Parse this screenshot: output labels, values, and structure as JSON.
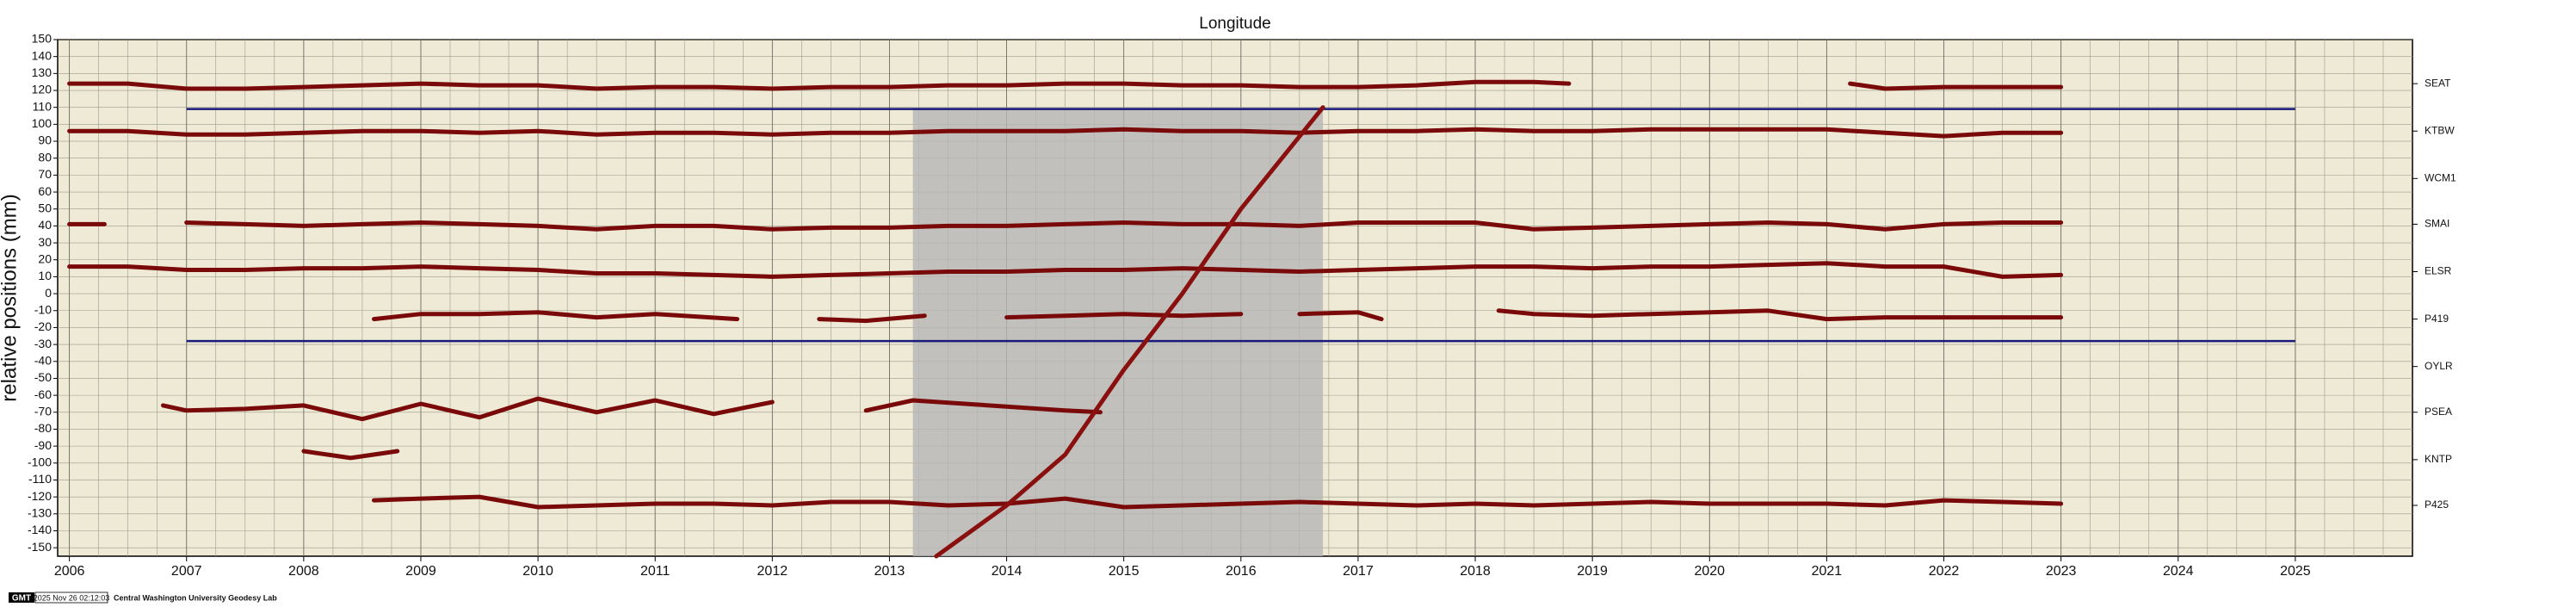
{
  "chart_data": {
    "type": "line",
    "title": "Longitude",
    "y_label": "relative positions (mm)",
    "xlim": [
      2005.9,
      2026.0
    ],
    "xticks": [
      2006,
      2007,
      2008,
      2009,
      2010,
      2011,
      2012,
      2013,
      2014,
      2015,
      2016,
      2017,
      2018,
      2019,
      2020,
      2021,
      2022,
      2023,
      2024,
      2025
    ],
    "x_minor_divisions": 4,
    "ylim": [
      -155,
      150
    ],
    "yticks": [
      -150,
      -140,
      -130,
      -120,
      -110,
      -100,
      -90,
      -80,
      -70,
      -60,
      -50,
      -40,
      -30,
      -20,
      -10,
      0,
      10,
      20,
      30,
      40,
      50,
      60,
      70,
      80,
      90,
      100,
      110,
      120,
      130,
      140,
      150
    ],
    "grid": true,
    "y2lim": [
      -155,
      150
    ],
    "y2ticks": [
      {
        "value": 124,
        "label": "SEAT"
      },
      {
        "value": 96,
        "label": "KTBW"
      },
      {
        "value": 68,
        "label": "WCM1"
      },
      {
        "value": 41,
        "label": "SMAI"
      },
      {
        "value": 13,
        "label": "ELSR"
      },
      {
        "value": -15,
        "label": "P419"
      },
      {
        "value": -43,
        "label": "OYLR"
      },
      {
        "value": -70,
        "label": "PSEA"
      },
      {
        "value": -98,
        "label": "KNTP"
      },
      {
        "value": -125,
        "label": "P425"
      }
    ],
    "shaded_span": {
      "x": [
        2013.2,
        2016.7
      ],
      "y": [
        -155,
        110
      ],
      "color": "#b5b5b5"
    },
    "reference_lines": [
      {
        "y": 109,
        "x": [
          2007,
          2025
        ],
        "color": "#1a1a7a"
      },
      {
        "y": -28,
        "x": [
          2007,
          2025
        ],
        "color": "#1a1a7a"
      }
    ],
    "series": [
      {
        "color": "#7a0a0a",
        "x": [
          2006,
          2006.5,
          2007,
          2007.5,
          2008,
          2008.5,
          2009,
          2009.5,
          2010,
          2010.5,
          2011,
          2011.5,
          2012,
          2012.5,
          2013,
          2013.5,
          2014,
          2014.5,
          2015,
          2015.5,
          2016,
          2016.5,
          2017,
          2017.5,
          2018,
          2018.5,
          2018.8,
          2020,
          2021.2,
          2021.5,
          2022,
          2022.5,
          2023
        ],
        "values": [
          124,
          124,
          121,
          121,
          122,
          123,
          124,
          123,
          123,
          121,
          122,
          122,
          121,
          122,
          122,
          123,
          123,
          124,
          124,
          123,
          123,
          122,
          122,
          123,
          125,
          125,
          124,
          null,
          124,
          121,
          122,
          122,
          122
        ]
      },
      {
        "color": "#7a0a0a",
        "x": [
          2006,
          2006.5,
          2007,
          2007.5,
          2008,
          2008.5,
          2009,
          2009.5,
          2010,
          2010.5,
          2011,
          2011.5,
          2012,
          2012.5,
          2013,
          2013.5,
          2014,
          2014.5,
          2015,
          2015.5,
          2016,
          2016.5,
          2017,
          2017.5,
          2018,
          2018.5,
          2019,
          2019.5,
          2020,
          2020.5,
          2021,
          2021.5,
          2022,
          2022.5,
          2023
        ],
        "values": [
          96,
          96,
          94,
          94,
          95,
          96,
          96,
          95,
          96,
          94,
          95,
          95,
          94,
          95,
          95,
          96,
          96,
          96,
          97,
          96,
          96,
          95,
          96,
          96,
          97,
          96,
          96,
          97,
          97,
          97,
          97,
          95,
          93,
          95,
          95
        ]
      },
      {
        "color": "#7a0a0a",
        "x": [
          2006,
          2006.3,
          2006.6,
          2007,
          2007.5,
          2008,
          2008.5,
          2009,
          2009.5,
          2010,
          2010.5,
          2011,
          2011.5,
          2012,
          2012.5,
          2013,
          2013.5,
          2014,
          2014.5,
          2015,
          2015.5,
          2016,
          2016.5,
          2017,
          2017.5,
          2018,
          2018.5,
          2019,
          2019.5,
          2020,
          2020.5,
          2021,
          2021.5,
          2022,
          2022.5,
          2023
        ],
        "values": [
          41,
          41,
          null,
          42,
          41,
          40,
          41,
          42,
          41,
          40,
          38,
          40,
          40,
          38,
          39,
          39,
          40,
          40,
          41,
          42,
          41,
          41,
          40,
          42,
          42,
          42,
          38,
          39,
          40,
          41,
          42,
          41,
          38,
          41,
          42,
          42
        ]
      },
      {
        "color": "#7a0a0a",
        "x": [
          2006,
          2006.5,
          2007,
          2007.5,
          2008,
          2008.5,
          2009,
          2009.5,
          2010,
          2010.5,
          2011,
          2011.5,
          2012,
          2012.5,
          2013,
          2013.5,
          2014,
          2014.5,
          2015,
          2015.5,
          2016,
          2016.5,
          2017,
          2017.5,
          2018,
          2018.5,
          2019,
          2019.5,
          2020,
          2020.5,
          2021,
          2021.5,
          2022,
          2022.5,
          2023
        ],
        "values": [
          16,
          16,
          14,
          14,
          15,
          15,
          16,
          15,
          14,
          12,
          12,
          11,
          10,
          11,
          12,
          13,
          13,
          14,
          14,
          15,
          14,
          13,
          14,
          15,
          16,
          16,
          15,
          16,
          16,
          17,
          18,
          16,
          16,
          10,
          11
        ]
      },
      {
        "color": "#7a0a0a",
        "x": [
          2008.6,
          2009,
          2009.5,
          2010,
          2010.5,
          2011,
          2011.7,
          2012,
          2012.4,
          2012.8,
          2013.3,
          2013.7,
          2014,
          2014.5,
          2015,
          2015.5,
          2016,
          2016.3,
          2016.5,
          2017,
          2017.2,
          2017.8,
          2018.2,
          2018.5,
          2019,
          2019.5,
          2020,
          2020.5,
          2021,
          2021.5,
          2022,
          2022.5,
          2023
        ],
        "values": [
          -15,
          -12,
          -12,
          -11,
          -14,
          -12,
          -15,
          null,
          -15,
          -16,
          -13,
          null,
          -14,
          -13,
          -12,
          -13,
          -12,
          null,
          -12,
          -11,
          -15,
          null,
          -10,
          -12,
          -13,
          -12,
          -11,
          -10,
          -15,
          -14,
          -14,
          -14,
          -14
        ]
      },
      {
        "color": "#7a0a0a",
        "x": [
          2006.8,
          2007,
          2007.5,
          2008,
          2008.5,
          2009,
          2009.5,
          2010,
          2010.5,
          2011,
          2011.5,
          2012,
          2012.3,
          2012.8,
          2013.2,
          2014.5,
          2014.8
        ],
        "values": [
          -66,
          -69,
          -68,
          -66,
          -74,
          -65,
          -73,
          -62,
          -70,
          -63,
          -71,
          -64,
          null,
          -69,
          -63,
          -69,
          -70
        ]
      },
      {
        "color": "#7a0a0a",
        "x": [
          2008,
          2008.4,
          2008.8
        ],
        "values": [
          -93,
          -97,
          -93
        ]
      },
      {
        "color": "#7a0a0a",
        "x": [
          2008.6,
          2009,
          2009.5,
          2010,
          2010.5,
          2011,
          2011.5,
          2012,
          2012.5,
          2013,
          2013.5,
          2014,
          2014.5,
          2015,
          2015.5,
          2016,
          2016.5,
          2017,
          2017.5,
          2018,
          2018.5,
          2019,
          2019.5,
          2020,
          2020.5,
          2021,
          2021.5,
          2022,
          2022.5,
          2023
        ],
        "values": [
          -122,
          -121,
          -120,
          -126,
          -125,
          -124,
          -124,
          -125,
          -123,
          -123,
          -125,
          -124,
          -121,
          -126,
          -125,
          -124,
          -123,
          -124,
          -125,
          -124,
          -125,
          -124,
          -123,
          -124,
          -124,
          -124,
          -125,
          -122,
          -123,
          -124
        ]
      },
      {
        "color": "#8a1010",
        "x": [
          2013.4,
          2014,
          2014.5,
          2015,
          2015.5,
          2016,
          2016.7
        ],
        "values": [
          -155,
          -125,
          -95,
          -45,
          0,
          50,
          110
        ]
      }
    ],
    "footer": {
      "logo": "GMT",
      "timestamp": "2025 Nov 26 02:12:03",
      "credit": "Central Washington University Geodesy Lab"
    }
  }
}
